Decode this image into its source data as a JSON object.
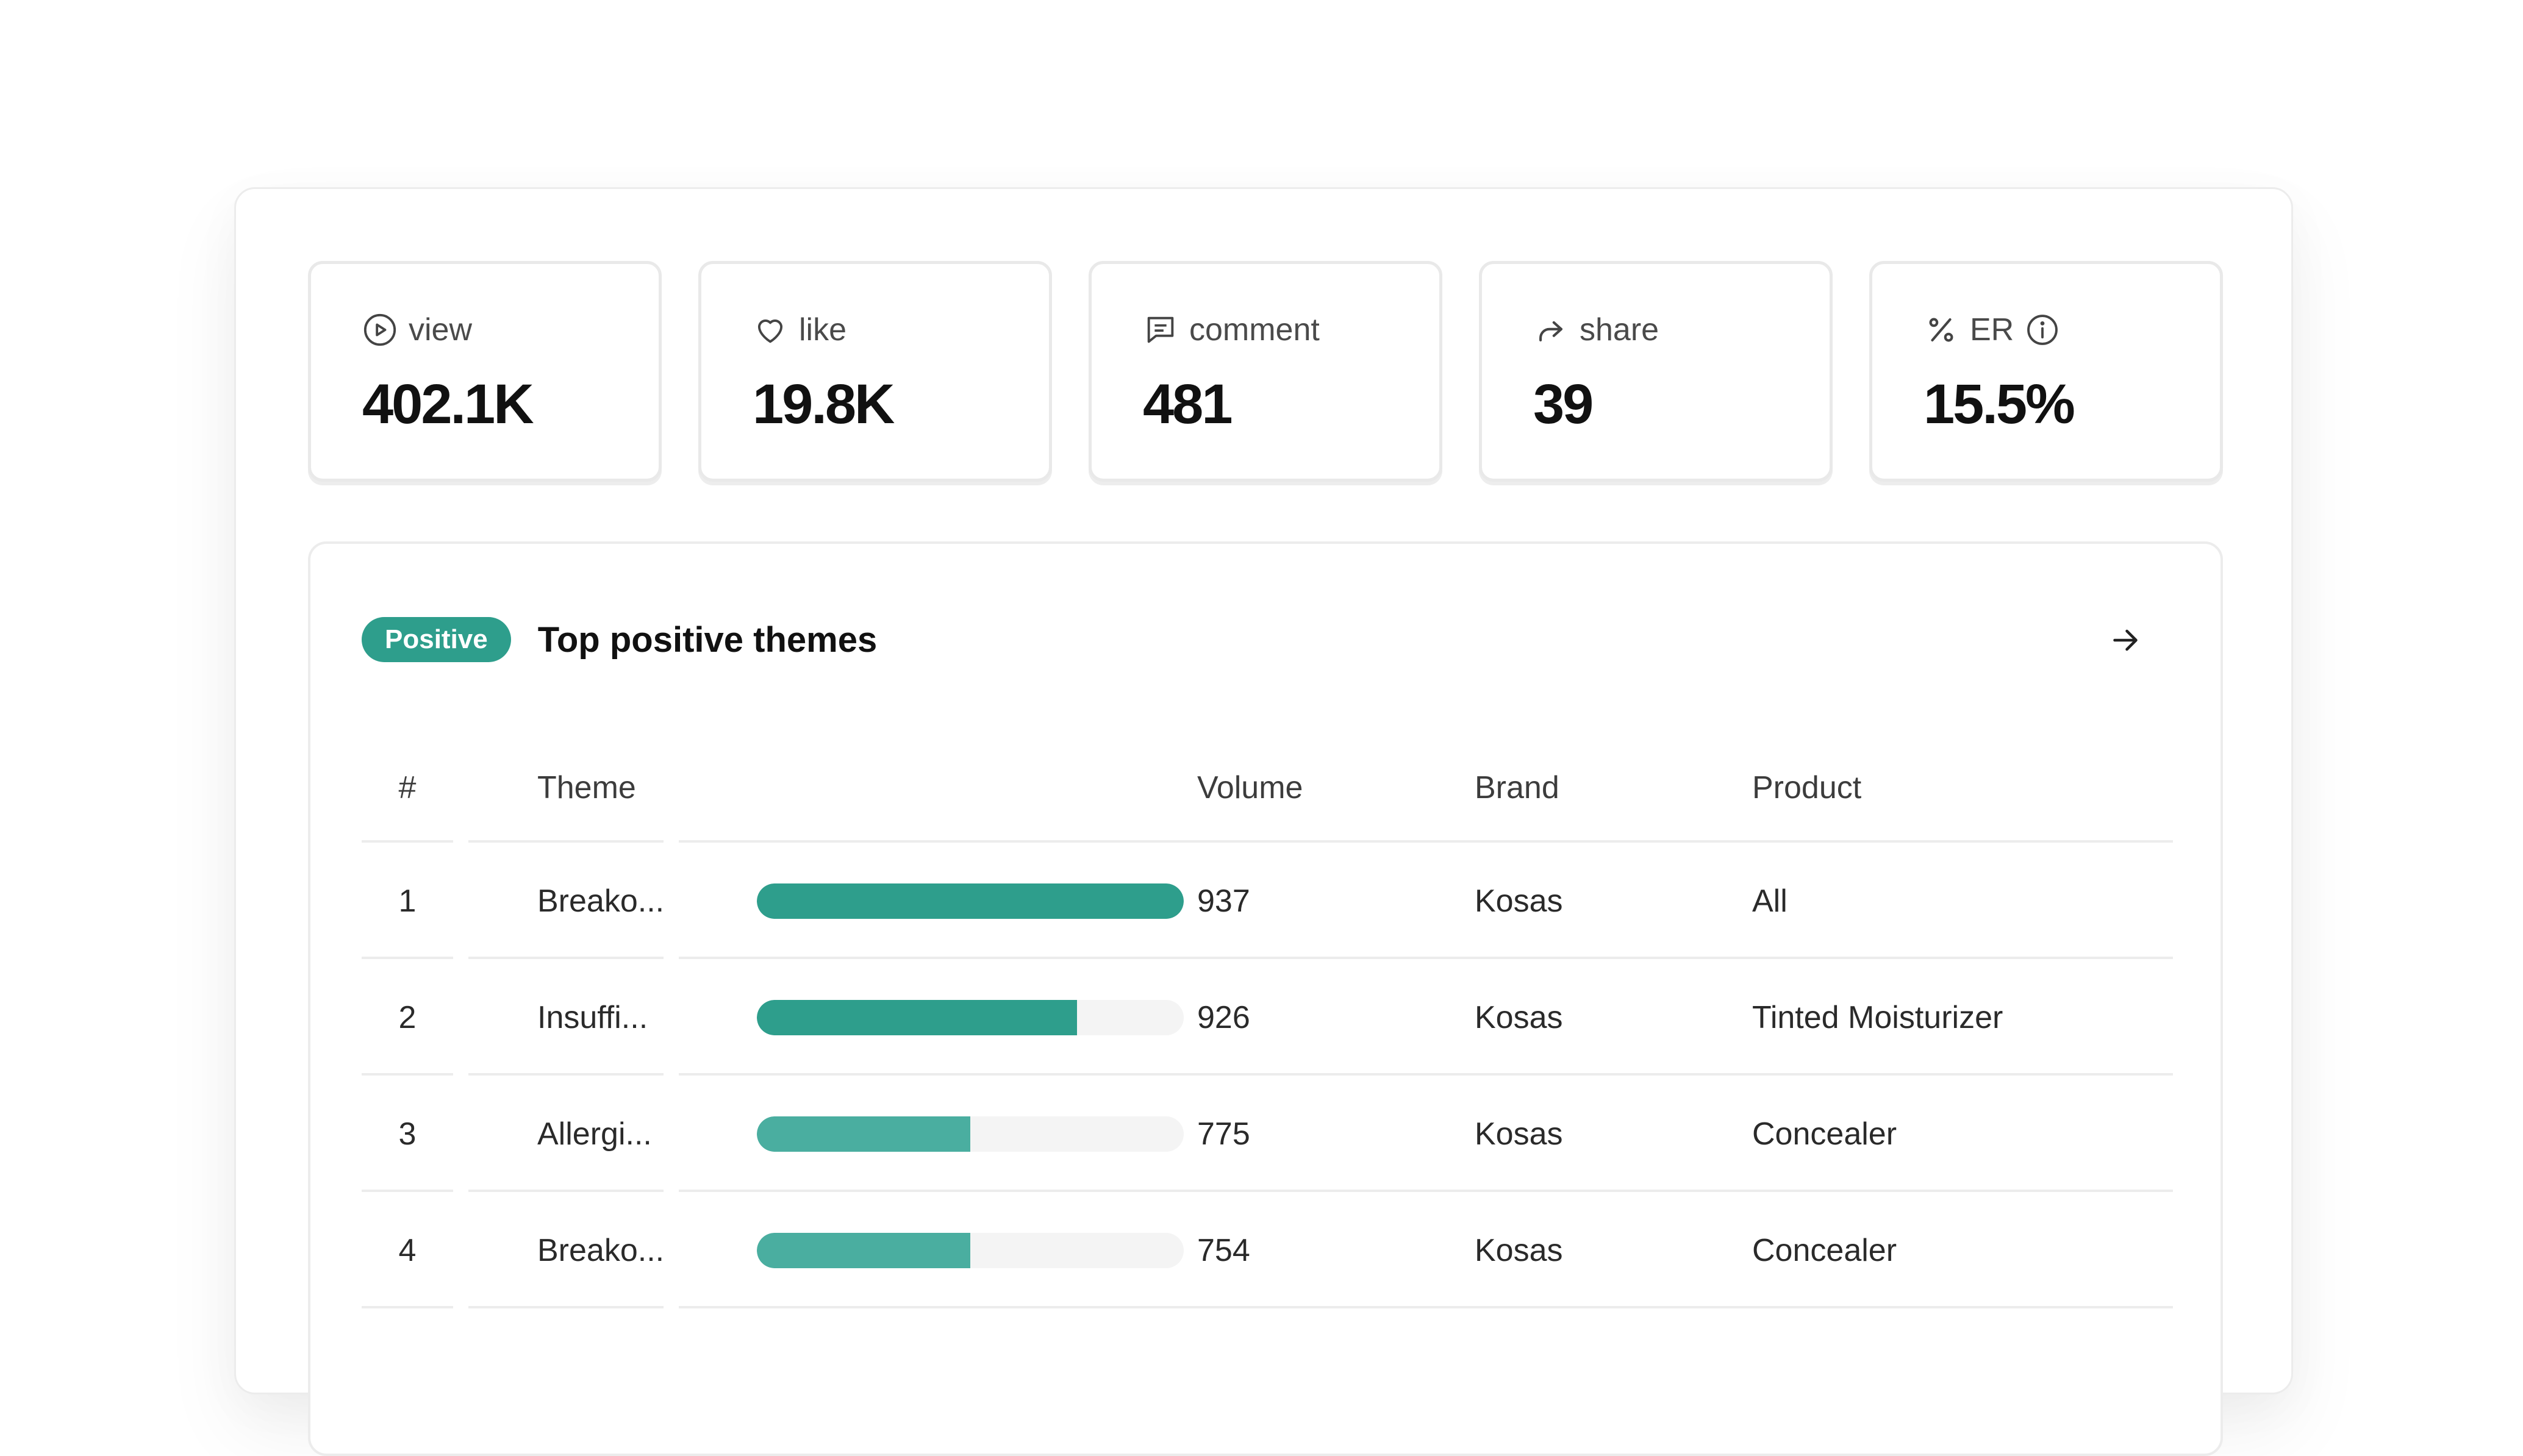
{
  "stats": [
    {
      "icon": "play-circle-icon",
      "label": "view",
      "value": "402.1K"
    },
    {
      "icon": "heart-icon",
      "label": "like",
      "value": "19.8K"
    },
    {
      "icon": "comment-icon",
      "label": "comment",
      "value": "481"
    },
    {
      "icon": "share-arrow-icon",
      "label": "share",
      "value": "39"
    },
    {
      "icon": "percent-icon",
      "label": "ER",
      "value": "15.5%",
      "extra_icon": "info-icon"
    }
  ],
  "panel": {
    "badge": "Positive",
    "title": "Top positive themes",
    "colors": {
      "accent": "#2e9e8c",
      "accent_light": "#4aaea0"
    }
  },
  "table": {
    "headers": {
      "num": "#",
      "theme": "Theme",
      "volume": "Volume",
      "brand": "Brand",
      "product": "Product"
    },
    "rows": [
      {
        "num": "1",
        "theme": "Breako...",
        "volume": "937",
        "brand": "Kosas",
        "product": "All",
        "bar_fraction": 1.0,
        "bar_color": "#2e9e8c"
      },
      {
        "num": "2",
        "theme": "Insuffi...",
        "volume": "926",
        "brand": "Kosas",
        "product": "Tinted Moisturizer",
        "bar_fraction": 0.75,
        "bar_color": "#2e9e8c"
      },
      {
        "num": "3",
        "theme": "Allergi...",
        "volume": "775",
        "brand": "Kosas",
        "product": "Concealer",
        "bar_fraction": 0.5,
        "bar_color": "#4aaea0"
      },
      {
        "num": "4",
        "theme": "Breako...",
        "volume": "754",
        "brand": "Kosas",
        "product": "Concealer",
        "bar_fraction": 0.5,
        "bar_color": "#4aaea0"
      }
    ]
  }
}
